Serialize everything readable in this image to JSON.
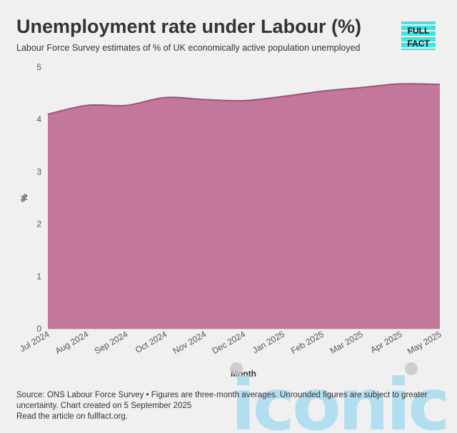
{
  "header": {
    "title": "Unemployment rate under Labour (%)",
    "subtitle": "Labour Force Survey estimates of % of UK economically active population unemployed"
  },
  "logo": {
    "line1": "FULL",
    "line2": "FACT",
    "color": "#3ae5e3"
  },
  "chart_data": {
    "type": "area",
    "categories": [
      "Jul 2024",
      "Aug 2024",
      "Sep 2024",
      "Oct 2024",
      "Nov 2024",
      "Dec 2024",
      "Jan 2025",
      "Feb 2025",
      "Mar 2025",
      "Apr 2025",
      "May 2025"
    ],
    "values": [
      4.1,
      4.27,
      4.27,
      4.42,
      4.38,
      4.36,
      4.44,
      4.54,
      4.61,
      4.68,
      4.67
    ],
    "ylim": [
      0,
      5
    ],
    "yticks": [
      0,
      1,
      2,
      3,
      4,
      5
    ],
    "xlabel": "Month",
    "ylabel": "%",
    "fill_color": "#c3779b",
    "line_color": "#a84e78",
    "grid": false
  },
  "footer": {
    "line1": "Source: ONS Labour Force Survey • Figures are three-month averages. Unrounded figures are subject to greater",
    "line2": "uncertainty. Chart created on 5 September 2025",
    "line3": "Read the article on fullfact.org."
  },
  "watermark": {
    "text": "iconic",
    "color": "#9fd9f0"
  }
}
